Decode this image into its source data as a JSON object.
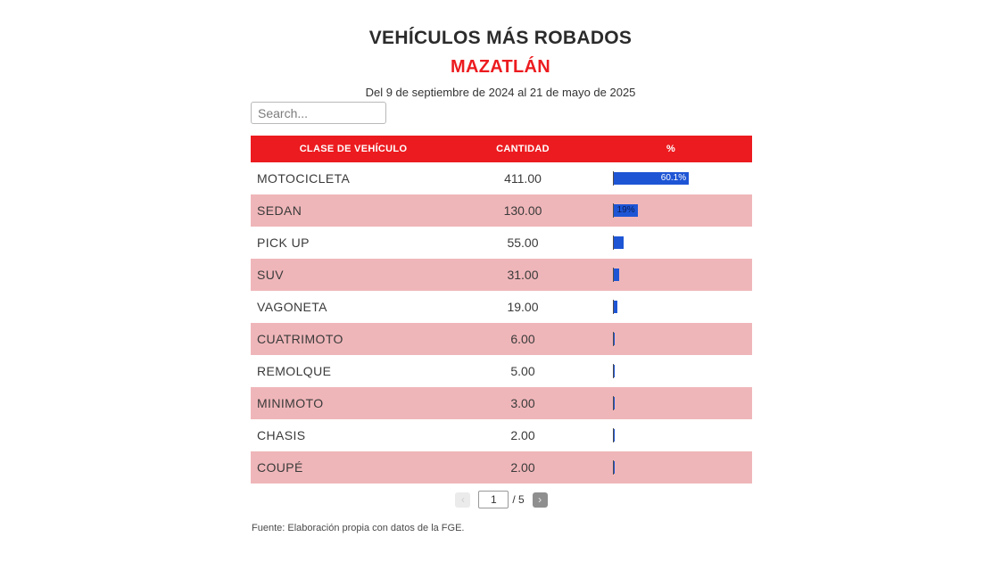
{
  "title": "VEHÍCULOS MÁS ROBADOS",
  "subtitle": "MAZATLÁN",
  "date_range": "Del 9 de septiembre de 2024 al 21 de mayo de 2025",
  "search": {
    "placeholder": "Search..."
  },
  "table": {
    "columns": [
      "CLASE DE VEHÍCULO",
      "CANTIDAD",
      "%"
    ],
    "rows": [
      {
        "clase": "MOTOCICLETA",
        "cantidad": "411.00",
        "pct": 60.1,
        "pct_label": "60.1%"
      },
      {
        "clase": "SEDAN",
        "cantidad": "130.00",
        "pct": 19.0,
        "pct_label": "19%"
      },
      {
        "clase": "PICK UP",
        "cantidad": "55.00",
        "pct": 8.0,
        "pct_label": ""
      },
      {
        "clase": "SUV",
        "cantidad": "31.00",
        "pct": 4.5,
        "pct_label": ""
      },
      {
        "clase": "VAGONETA",
        "cantidad": "19.00",
        "pct": 2.8,
        "pct_label": ""
      },
      {
        "clase": "CUATRIMOTO",
        "cantidad": "6.00",
        "pct": 0.9,
        "pct_label": ""
      },
      {
        "clase": "REMOLQUE",
        "cantidad": "5.00",
        "pct": 0.7,
        "pct_label": ""
      },
      {
        "clase": "MINIMOTO",
        "cantidad": "3.00",
        "pct": 0.4,
        "pct_label": ""
      },
      {
        "clase": "CHASIS",
        "cantidad": "2.00",
        "pct": 0.3,
        "pct_label": ""
      },
      {
        "clase": "COUPÉ",
        "cantidad": "2.00",
        "pct": 0.3,
        "pct_label": ""
      }
    ]
  },
  "pagination": {
    "prev_label": "‹",
    "page": "1",
    "total_label": "/ 5",
    "next_label": "›"
  },
  "footer": "Fuente: Elaboración propia con datos de la FGE.",
  "colors": {
    "header_red": "#ec1b1f",
    "row_pink": "#efb6b9",
    "bar_blue": "#1e55d5",
    "bar_label_light": "#ffffff",
    "bar_label_dark": "#0c1f56"
  },
  "chart_data": {
    "type": "table",
    "title": "VEHÍCULOS MÁS ROBADOS",
    "subtitle": "MAZATLÁN",
    "caption": "Del 9 de septiembre de 2024 al 21 de mayo de 2025",
    "columns": [
      "CLASE DE VEHÍCULO",
      "CANTIDAD",
      "%"
    ],
    "categories": [
      "MOTOCICLETA",
      "SEDAN",
      "PICK UP",
      "SUV",
      "VAGONETA",
      "CUATRIMOTO",
      "REMOLQUE",
      "MINIMOTO",
      "CHASIS",
      "COUPÉ"
    ],
    "values": [
      411,
      130,
      55,
      31,
      19,
      6,
      5,
      3,
      2,
      2
    ],
    "pct": [
      60.1,
      19.0,
      8.0,
      4.5,
      2.8,
      0.9,
      0.7,
      0.4,
      0.3,
      0.3
    ],
    "visible_pct_labels": [
      "60.1%",
      "19%"
    ],
    "bar_color": "#1e55d5",
    "page": 1,
    "total_pages": 5,
    "source": "Fuente: Elaboración propia con datos de la FGE."
  }
}
